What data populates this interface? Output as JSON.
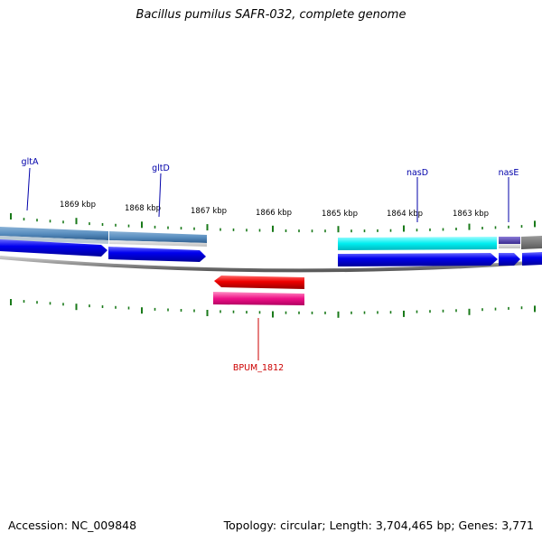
{
  "title": "Bacillus pumilus SAFR-032, complete genome",
  "footer": {
    "accession": "Accession: NC_009848",
    "summary": "Topology: circular; Length: 3,704,465 bp; Genes: 3,771"
  },
  "colors": {
    "backbone": "#8a8a8a",
    "tick": "#1a7a1a",
    "forward_cds": "#0000ee",
    "reverse_cds": "#ee0000",
    "gene_label_blue": "#0000aa",
    "gene_label_red": "#cc0000"
  },
  "scale_labels": [
    "1869 kbp",
    "1868 kbp",
    "1867 kbp",
    "1866 kbp",
    "1865 kbp",
    "1864 kbp",
    "1863 kbp"
  ],
  "gene_labels": [
    {
      "name": "gltA",
      "strand": "forward"
    },
    {
      "name": "gltD",
      "strand": "forward"
    },
    {
      "name": "nasD",
      "strand": "forward"
    },
    {
      "name": "nasE",
      "strand": "forward"
    },
    {
      "name": "BPUM_1812",
      "strand": "reverse"
    }
  ]
}
